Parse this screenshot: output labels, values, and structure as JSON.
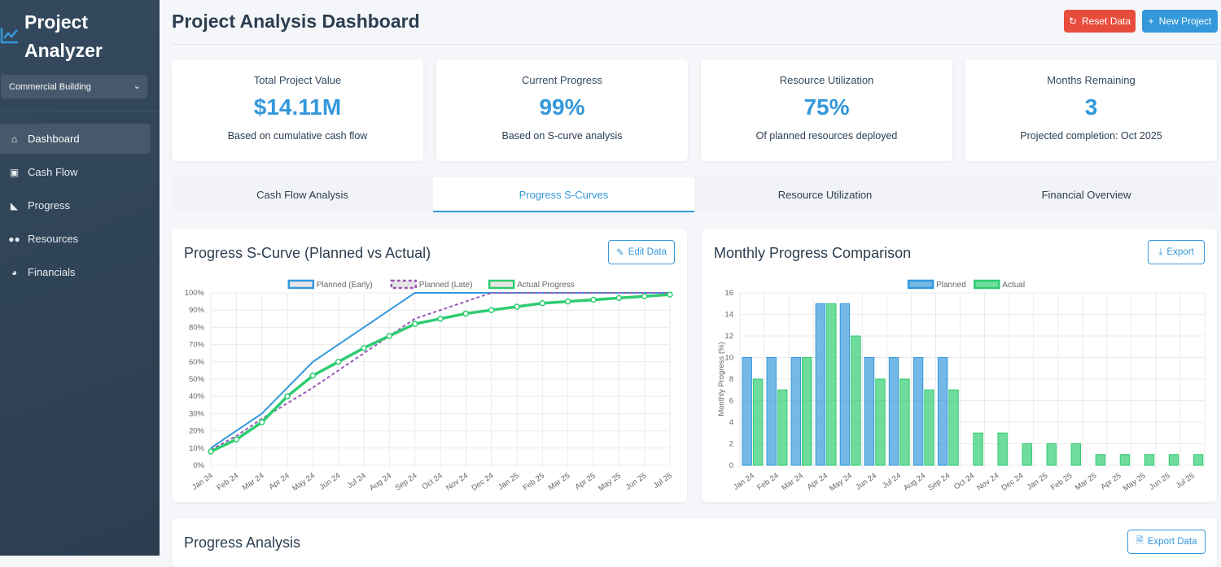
{
  "sidebar": {
    "brand": [
      "Project",
      "Analyzer"
    ],
    "project_select": "Commercial Building",
    "items": [
      {
        "label": "Dashboard",
        "icon": "home-icon"
      },
      {
        "label": "Cash Flow",
        "icon": "money-icon"
      },
      {
        "label": "Progress",
        "icon": "sitemap-icon"
      },
      {
        "label": "Resources",
        "icon": "users-icon"
      },
      {
        "label": "Financials",
        "icon": "pie-chart-icon"
      }
    ]
  },
  "header": {
    "title": "Project Analysis Dashboard",
    "reset_label": "Reset Data",
    "new_label": "New Project"
  },
  "colors": {
    "primary": "#3498db",
    "danger": "#e74c3c",
    "success": "#2ecc71",
    "purple": "#9b59b6",
    "sidebar": "#2c3e50"
  },
  "stats": [
    {
      "label": "Total Project Value",
      "value": "$14.11M",
      "sub": "Based on cumulative cash flow"
    },
    {
      "label": "Current Progress",
      "value": "99%",
      "sub": "Based on S-curve analysis"
    },
    {
      "label": "Resource Utilization",
      "value": "75%",
      "sub": "Of planned resources deployed"
    },
    {
      "label": "Months Remaining",
      "value": "3",
      "sub": "Projected completion: Oct 2025"
    }
  ],
  "tabs": [
    "Cash Flow Analysis",
    "Progress S-Curves",
    "Resource Utilization",
    "Financial Overview"
  ],
  "scurve_card": {
    "title": "Progress S-Curve (Planned vs Actual)",
    "button": "Edit Data"
  },
  "monthly_card": {
    "title": "Monthly Progress Comparison",
    "button": "Export"
  },
  "analysis_card": {
    "title": "Progress Analysis",
    "button": "Export Data"
  },
  "chart_data": [
    {
      "type": "line",
      "title": "Progress S-Curve (Planned vs Actual)",
      "ylim": [
        0,
        100
      ],
      "yticks": [
        "0%",
        "10%",
        "20%",
        "30%",
        "40%",
        "50%",
        "60%",
        "70%",
        "80%",
        "90%",
        "100%"
      ],
      "categories": [
        "Jan 24",
        "Feb 24",
        "Mar 24",
        "Apr 24",
        "May 24",
        "Jun 24",
        "Jul 24",
        "Aug 24",
        "Sep 24",
        "Oct 24",
        "Nov 24",
        "Dec 24",
        "Jan 25",
        "Feb 25",
        "Mar 25",
        "Apr 25",
        "May 25",
        "Jun 25",
        "Jul 25"
      ],
      "legend": "top",
      "series": [
        {
          "name": "Planned (Early)",
          "color": "#3498db",
          "style": "solid",
          "values": [
            10,
            20,
            30,
            45,
            60,
            70,
            80,
            90,
            100,
            100,
            100,
            100,
            100,
            100,
            100,
            100,
            100,
            100,
            100
          ]
        },
        {
          "name": "Planned (Late)",
          "color": "#9b59b6",
          "style": "dashed",
          "values": [
            9,
            17,
            27,
            36,
            45,
            55,
            65,
            75,
            85,
            90,
            95,
            100,
            100,
            100,
            100,
            100,
            100,
            100,
            100
          ]
        },
        {
          "name": "Actual Progress",
          "color": "#2ecc71",
          "style": "solid-points",
          "values": [
            8,
            15,
            25,
            40,
            52,
            60,
            68,
            75,
            82,
            85,
            88,
            90,
            92,
            94,
            95,
            96,
            97,
            98,
            99
          ]
        }
      ]
    },
    {
      "type": "bar",
      "title": "Monthly Progress Comparison",
      "ylabel": "Monthly Progress (%)",
      "ylim": [
        0,
        16
      ],
      "yticks": [
        "0",
        "2",
        "4",
        "6",
        "8",
        "10",
        "12",
        "14",
        "16"
      ],
      "categories": [
        "Jan 24",
        "Feb 24",
        "Mar 24",
        "Apr 24",
        "May 24",
        "Jun 24",
        "Jul 24",
        "Aug 24",
        "Sep 24",
        "Oct 24",
        "Nov 24",
        "Dec 24",
        "Jan 25",
        "Feb 25",
        "Mar 25",
        "Apr 25",
        "May 25",
        "Jun 25",
        "Jul 25"
      ],
      "legend": "top",
      "series": [
        {
          "name": "Planned",
          "color": "#3498db",
          "values": [
            10,
            10,
            10,
            15,
            15,
            10,
            10,
            10,
            10,
            0,
            0,
            0,
            0,
            0,
            0,
            0,
            0,
            0,
            0
          ]
        },
        {
          "name": "Actual",
          "color": "#2ecc71",
          "values": [
            8,
            7,
            10,
            15,
            12,
            8,
            8,
            7,
            7,
            3,
            3,
            2,
            2,
            2,
            1,
            1,
            1,
            1,
            1
          ]
        }
      ]
    }
  ]
}
